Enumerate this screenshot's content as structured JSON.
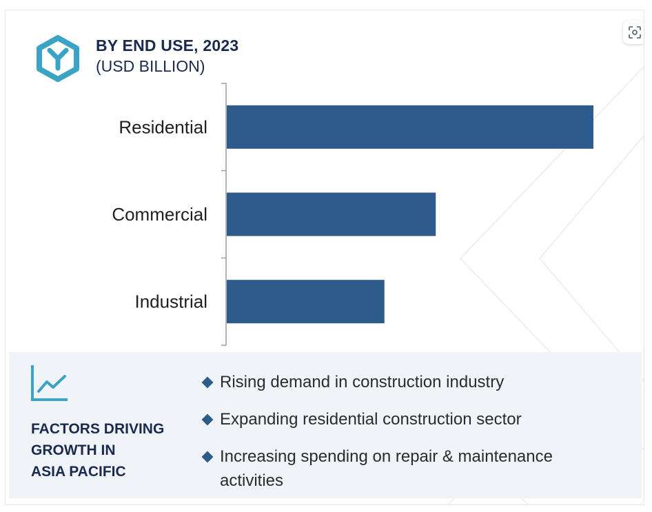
{
  "header": {
    "title": "BY END USE, 2023",
    "subtitle": "(USD BILLION)"
  },
  "icons": {
    "logo": "hexagon-y-logo-icon",
    "zoom": "zoom-icon",
    "trend": "trend-line-icon",
    "bullet": "diamond-bullet-icon"
  },
  "colors": {
    "bar": "#2d5b8a",
    "title": "#1a2a4f",
    "logo": "#3aa3c6",
    "panel": "#f0f3f7"
  },
  "chart_data": {
    "type": "bar",
    "orientation": "horizontal",
    "title": "BY END USE, 2023",
    "subtitle": "(USD BILLION)",
    "categories": [
      "Residential",
      "Commercial",
      "Industrial"
    ],
    "values": [
      100,
      57,
      43
    ],
    "xlim": [
      0,
      100
    ],
    "grid": false,
    "legend": "none"
  },
  "factors": {
    "title_lines": [
      "FACTORS DRIVING",
      "GROWTH IN",
      "ASIA PACIFIC"
    ],
    "items": [
      "Rising demand in construction industry",
      "Expanding residential construction sector",
      "Increasing spending on repair & maintenance activities"
    ]
  }
}
